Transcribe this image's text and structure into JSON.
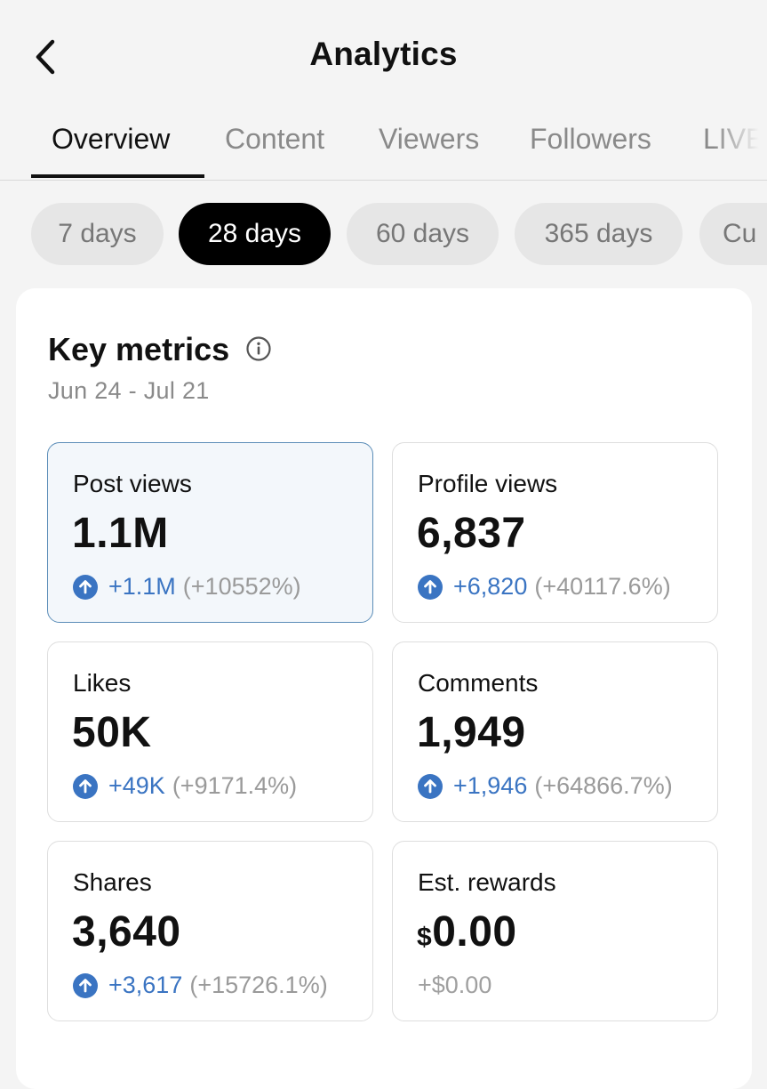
{
  "header": {
    "title": "Analytics",
    "back_icon": "chevron-left-icon"
  },
  "tabs": [
    "Overview",
    "Content",
    "Viewers",
    "Followers",
    "LIVE"
  ],
  "date_filters": [
    "7 days",
    "28 days",
    "60 days",
    "365 days",
    "Cu"
  ],
  "key_metrics": {
    "title": "Key metrics",
    "date_range": "Jun 24 - Jul 21",
    "info_icon": "info-icon",
    "metrics": [
      {
        "label": "Post views",
        "value": "1.1M",
        "delta": "+1.1M",
        "pct": "(+10552%)"
      },
      {
        "label": "Profile views",
        "value": "6,837",
        "delta": "+6,820",
        "pct": "(+40117.6%)"
      },
      {
        "label": "Likes",
        "value": "50K",
        "delta": "+49K",
        "pct": "(+9171.4%)"
      },
      {
        "label": "Comments",
        "value": "1,949",
        "delta": "+1,946",
        "pct": "(+64866.7%)"
      },
      {
        "label": "Shares",
        "value": "3,640",
        "delta": "+3,617",
        "pct": "(+15726.1%)"
      },
      {
        "label": "Est. rewards",
        "currency": "$",
        "value": "0.00",
        "delta": "+$0.00"
      }
    ]
  },
  "colors": {
    "accent_blue": "#3a74c2",
    "selected_border": "#5b8db8",
    "chip_active": "#000000"
  }
}
